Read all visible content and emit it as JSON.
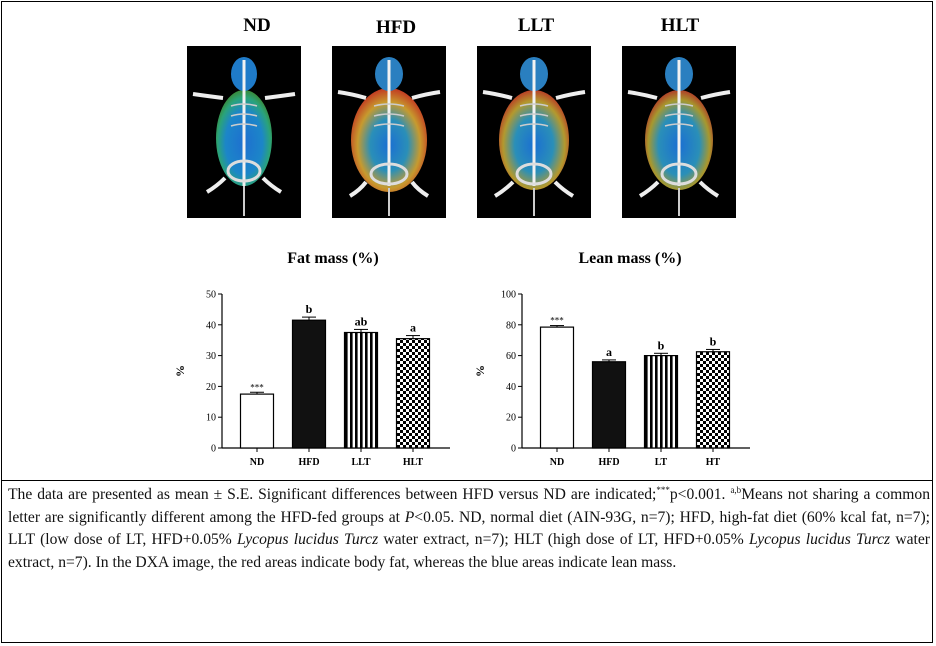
{
  "groups": [
    "ND",
    "HFD",
    "LLT",
    "HLT"
  ],
  "chart_data": [
    {
      "type": "bar",
      "title": "Fat mass (%)",
      "ylabel": "%",
      "xlabel": "",
      "ylim": [
        0,
        50
      ],
      "yticks": [
        0,
        10,
        20,
        30,
        40,
        50
      ],
      "categories": [
        "ND",
        "HFD",
        "LLT",
        "HLT"
      ],
      "values": [
        17.5,
        41.5,
        37.5,
        35.5
      ],
      "errors": [
        0.6,
        1.0,
        1.0,
        1.0
      ],
      "annotations": [
        "***",
        "b",
        "ab",
        "a"
      ],
      "patterns": [
        "white",
        "black",
        "stripes",
        "checker"
      ]
    },
    {
      "type": "bar",
      "title": "Lean mass (%)",
      "ylabel": "%",
      "xlabel": "",
      "ylim": [
        0,
        100
      ],
      "yticks": [
        0,
        20,
        40,
        60,
        80,
        100
      ],
      "categories": [
        "ND",
        "HFD",
        "LT",
        "HT"
      ],
      "values": [
        78.5,
        56,
        60,
        62.5
      ],
      "errors": [
        1.0,
        1.2,
        1.5,
        1.5
      ],
      "annotations": [
        "***",
        "a",
        "b",
        "b"
      ],
      "patterns": [
        "white",
        "black",
        "stripes",
        "checker"
      ]
    }
  ],
  "caption": {
    "p1": "The data are presented as mean ± S.E. Significant differences between HFD versus ND are indicated;",
    "sup1": "***",
    "p2": "p<0.001. ",
    "sup2": "a,b",
    "p3": "Means not sharing a common letter are significantly different among the HFD-fed groups at ",
    "p_italic": "P",
    "p4": "<0.05. ND, normal diet (AIN-93G, n=7); HFD, high-fat diet (60% kcal fat, n=7); LLT (low dose of LT, HFD+0.05% ",
    "species1": "Lycopus lucidus Turcz",
    "p5": " water extract, n=7); HLT (high dose of LT, HFD+0.05% ",
    "species2": "Lycopus lucidus Turcz",
    "p6": " water extract, n=7). In the DXA image, the red areas indicate body fat, whereas the blue areas indicate lean mass."
  }
}
